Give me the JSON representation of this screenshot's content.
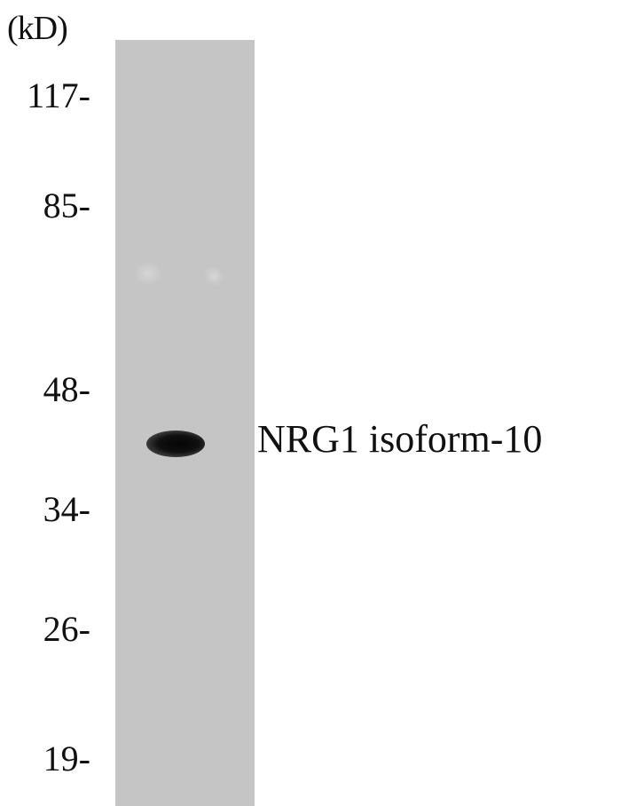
{
  "unit_label": "(kD)",
  "markers": [
    {
      "label": "117-",
      "kd": 117
    },
    {
      "label": "85-",
      "kd": 85
    },
    {
      "label": "48-",
      "kd": 48
    },
    {
      "label": "34-",
      "kd": 34
    },
    {
      "label": "26-",
      "kd": 26
    },
    {
      "label": "19-",
      "kd": 19
    }
  ],
  "band": {
    "label": "NRG1 isoform-10"
  },
  "colors": {
    "lane": "#c5c5c5",
    "band": "#0a0a0a",
    "text": "#111111",
    "background": "#ffffff"
  }
}
